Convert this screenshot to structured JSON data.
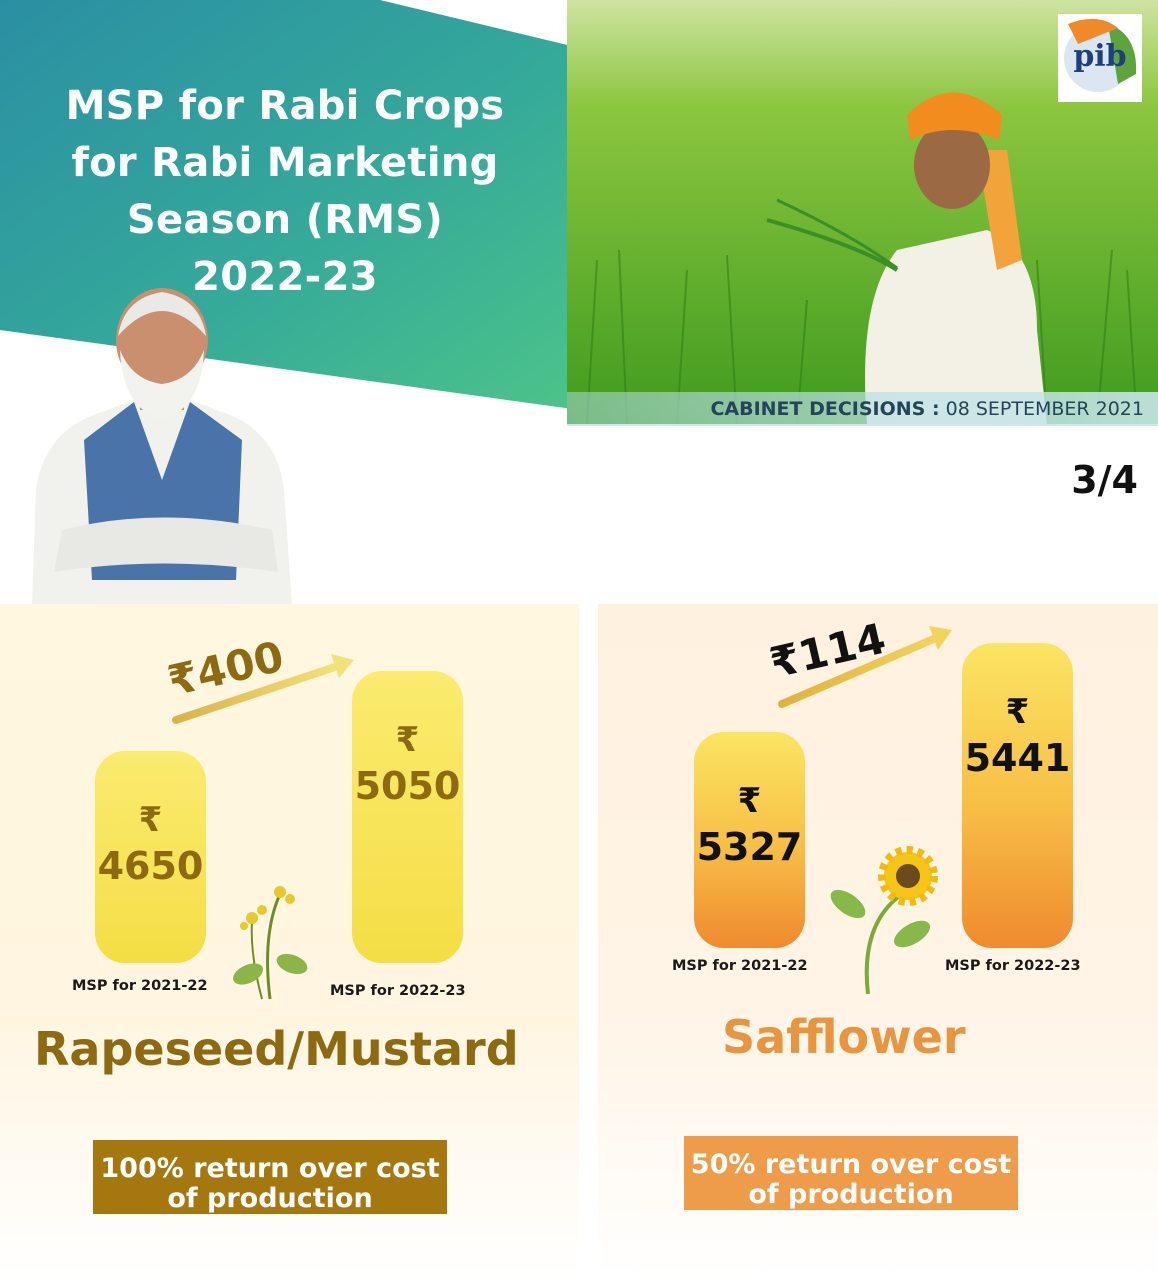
{
  "header": {
    "title_lines": [
      "MSP for Rabi Crops",
      "for Rabi Marketing",
      "Season (RMS)",
      "2022-23"
    ],
    "cabinet_label": "CABINET DECISIONS :",
    "cabinet_date": "08 SEPTEMBER 2021",
    "page_indicator": "3/4",
    "logo_text": "pib"
  },
  "colors": {
    "teal": "#2a8fa3",
    "green": "#49c08a",
    "mustard_text": "#8d6a11",
    "mustard_box": "#a5780f",
    "safflower_text": "#e7953f",
    "safflower_box": "#ee9b4a"
  },
  "chart_data": [
    {
      "type": "bar",
      "crop": "Rapeseed/Mustard",
      "currency": "₹",
      "categories": [
        "MSP for 2021-22",
        "MSP for 2022-23"
      ],
      "values": [
        4650,
        5050
      ],
      "increase_label": "₹400",
      "return_note": "100% return over cost of production"
    },
    {
      "type": "bar",
      "crop": "Safflower",
      "currency": "₹",
      "categories": [
        "MSP for 2021-22",
        "MSP for 2022-23"
      ],
      "values": [
        5327,
        5441
      ],
      "increase_label": "₹114",
      "return_note": "50% return over cost of production"
    }
  ]
}
